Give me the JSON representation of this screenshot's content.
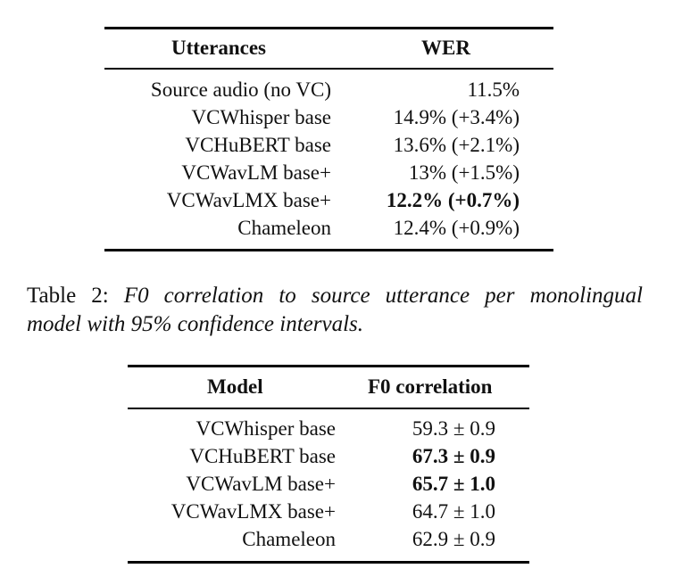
{
  "table1": {
    "headers": [
      "Utterances",
      "WER"
    ],
    "rows": [
      {
        "name": "Source audio (no VC)",
        "value": "11.5%",
        "bold": false
      },
      {
        "name": "VCWhisper base",
        "value": "14.9% (+3.4%)",
        "bold": false
      },
      {
        "name": "VCHuBERT base",
        "value": "13.6% (+2.1%)",
        "bold": false
      },
      {
        "name": "VCWavLM base+",
        "value": "13% (+1.5%)",
        "bold": false
      },
      {
        "name": "VCWavLMX base+",
        "value": "12.2% (+0.7%)",
        "bold": true
      },
      {
        "name": "Chameleon",
        "value": "12.4% (+0.9%)",
        "bold": false
      }
    ]
  },
  "caption2": {
    "label": "Table 2:",
    "line1": "F0 correlation to source utterance per monolingual",
    "line2": "model with 95% confidence intervals."
  },
  "table2": {
    "headers": [
      "Model",
      "F0 correlation"
    ],
    "rows": [
      {
        "name": "VCWhisper base",
        "value": "59.3 ± 0.9",
        "bold": false
      },
      {
        "name": "VCHuBERT base",
        "value": "67.3 ± 0.9",
        "bold": true
      },
      {
        "name": "VCWavLM base+",
        "value": "65.7 ± 1.0",
        "bold": true
      },
      {
        "name": "VCWavLMX base+",
        "value": "64.7 ± 1.0",
        "bold": false
      },
      {
        "name": "Chameleon",
        "value": "62.9 ± 0.9",
        "bold": false
      }
    ]
  }
}
